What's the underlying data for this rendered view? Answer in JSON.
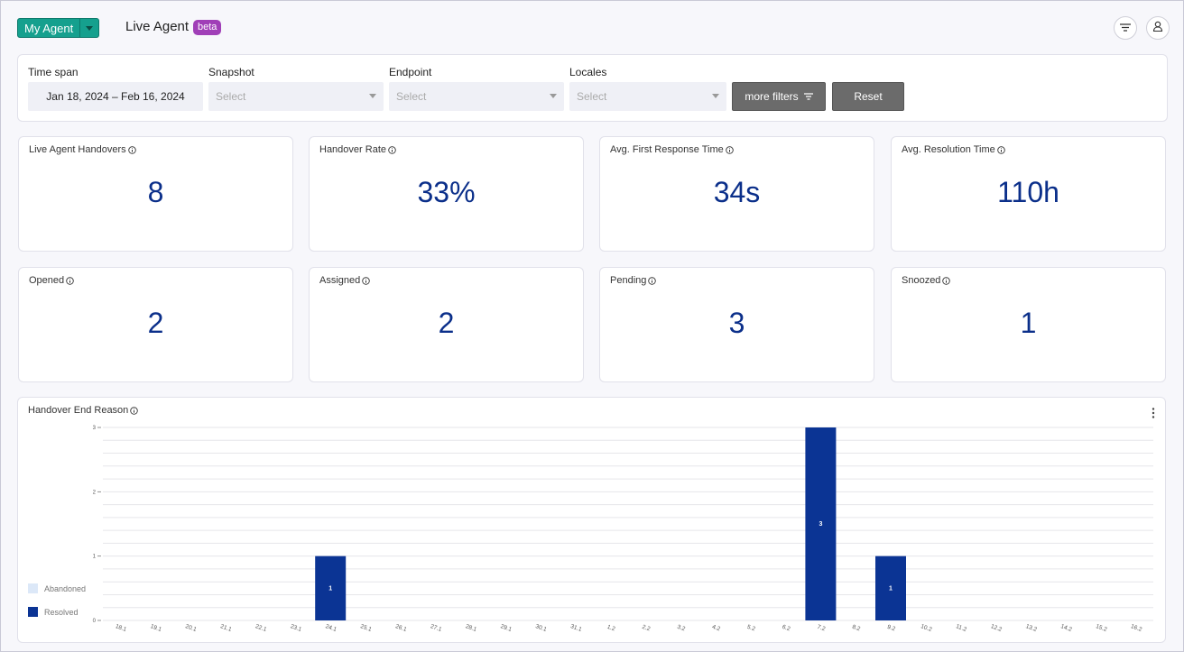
{
  "header": {
    "agent_selector": "My Agent",
    "title": "Live Agent",
    "badge": "beta"
  },
  "filters": {
    "time_span": {
      "label": "Time span",
      "value": "Jan 18, 2024 – Feb 16, 2024"
    },
    "snapshot": {
      "label": "Snapshot",
      "placeholder": "Select"
    },
    "endpoint": {
      "label": "Endpoint",
      "placeholder": "Select"
    },
    "locales": {
      "label": "Locales",
      "placeholder": "Select"
    },
    "more_filters": "more filters",
    "reset": "Reset"
  },
  "metrics": [
    {
      "title": "Live Agent Handovers",
      "value": "8"
    },
    {
      "title": "Handover Rate",
      "value": "33%"
    },
    {
      "title": "Avg. First Response Time",
      "value": "34s"
    },
    {
      "title": "Avg. Resolution Time",
      "value": "110h"
    },
    {
      "title": "Opened",
      "value": "2"
    },
    {
      "title": "Assigned",
      "value": "2"
    },
    {
      "title": "Pending",
      "value": "3"
    },
    {
      "title": "Snoozed",
      "value": "1"
    }
  ],
  "colors": {
    "accent": "#15a08e",
    "beta": "#a03fb7",
    "value": "#0b2f8a",
    "resolved": "#0b3494",
    "abandoned": "#dce8f8"
  },
  "chart_data": {
    "type": "bar",
    "title": "Handover End Reason",
    "stacked": true,
    "categories": [
      "18.1",
      "19.1",
      "20.1",
      "21.1",
      "22.1",
      "23.1",
      "24.1",
      "25.1",
      "26.1",
      "27.1",
      "28.1",
      "29.1",
      "30.1",
      "31.1",
      "1.2",
      "2.2",
      "3.2",
      "4.2",
      "5.2",
      "6.2",
      "7.2",
      "8.2",
      "9.2",
      "10.2",
      "11.2",
      "12.2",
      "13.2",
      "14.2",
      "15.2",
      "16.2"
    ],
    "series": [
      {
        "name": "Abandoned",
        "values": [
          0,
          0,
          0,
          0,
          0,
          0,
          0,
          0,
          0,
          0,
          0,
          0,
          0,
          0,
          0,
          0,
          0,
          0,
          0,
          0,
          0,
          0,
          0,
          0,
          0,
          0,
          0,
          0,
          0,
          0
        ]
      },
      {
        "name": "Resolved",
        "values": [
          0,
          0,
          0,
          0,
          0,
          0,
          1,
          0,
          0,
          0,
          0,
          0,
          0,
          0,
          0,
          0,
          0,
          0,
          0,
          0,
          3,
          0,
          1,
          0,
          0,
          0,
          0,
          0,
          0,
          0
        ]
      }
    ],
    "y_ticks": [
      "0",
      "1",
      "2",
      "3"
    ],
    "ylim": [
      0,
      3
    ],
    "grid": true,
    "legend": "bottom-left"
  }
}
